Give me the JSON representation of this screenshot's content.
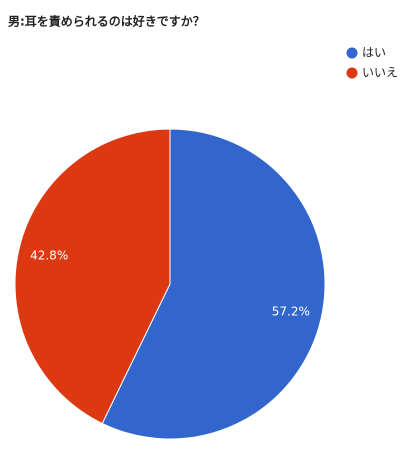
{
  "chart_data": {
    "type": "pie",
    "title": "男:耳を責められるのは好きですか？",
    "categories": [
      "はい",
      "いいえ"
    ],
    "values": [
      57.2,
      42.8
    ],
    "value_labels": [
      "57.2%",
      "42.8%"
    ],
    "colors": [
      "#3366cc",
      "#dc3912"
    ],
    "legend": "top-right"
  }
}
